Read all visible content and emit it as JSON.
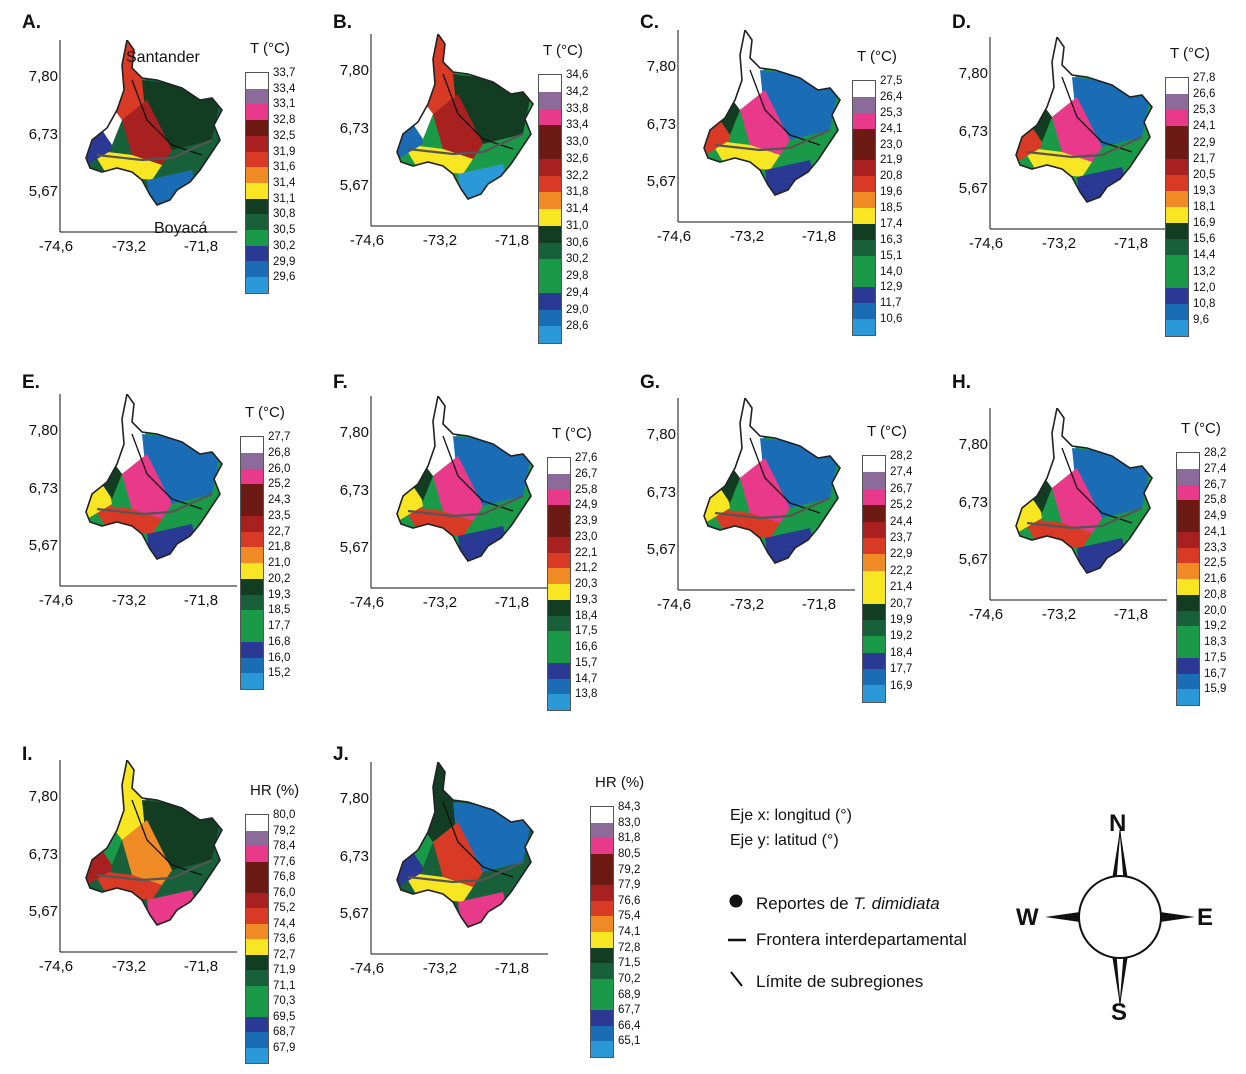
{
  "panels": [
    {
      "letter": "A.",
      "title": "T (°C)",
      "legend": [
        "33,7",
        "33,4",
        "33,1",
        "32,8",
        "32,5",
        "31,9",
        "31,6",
        "31,4",
        "31,1",
        "30,8",
        "30,5",
        "30,2",
        "29,9",
        "29,6"
      ],
      "scheme": "hot",
      "labels": {
        "north": "Santander",
        "south": "Boyacá"
      }
    },
    {
      "letter": "B.",
      "title": "T (°C)",
      "legend": [
        "34,6",
        "34,2",
        "33,8",
        "33,4",
        "33,0",
        "32,6",
        "32,2",
        "31,8",
        "31,4",
        "31,0",
        "30,6",
        "30,2",
        "29,8",
        "29,4",
        "29,0",
        "28,6"
      ],
      "scheme": "hot2"
    },
    {
      "letter": "C.",
      "title": "T (°C)",
      "legend": [
        "27,5",
        "26,4",
        "25,3",
        "24,1",
        "23,0",
        "21,9",
        "20,8",
        "19,6",
        "18,5",
        "17,4",
        "16,3",
        "15,1",
        "14,0",
        "12,9",
        "11,7",
        "10,6"
      ],
      "scheme": "cool"
    },
    {
      "letter": "D.",
      "title": "T (°C)",
      "legend": [
        "27,8",
        "26,6",
        "25,3",
        "24,1",
        "22,9",
        "21,7",
        "20,5",
        "19,3",
        "18,1",
        "16,9",
        "15,6",
        "14,4",
        "13,2",
        "12,0",
        "10,8",
        "9,6"
      ],
      "scheme": "cool"
    },
    {
      "letter": "E.",
      "title": "T (°C)",
      "legend": [
        "27,7",
        "26,8",
        "26,0",
        "25,2",
        "24,3",
        "23,5",
        "22,7",
        "21,8",
        "21,0",
        "20,2",
        "19,3",
        "18,5",
        "17,7",
        "16,8",
        "16,0",
        "15,2"
      ],
      "scheme": "mid"
    },
    {
      "letter": "F.",
      "title": "T (°C)",
      "legend": [
        "27,6",
        "26,7",
        "25,8",
        "24,9",
        "23,9",
        "23,0",
        "22,1",
        "21,2",
        "20,3",
        "19,3",
        "18,4",
        "17,5",
        "16,6",
        "15,7",
        "14,7",
        "13,8"
      ],
      "scheme": "mid"
    },
    {
      "letter": "G.",
      "title": "T (°C)",
      "legend": [
        "28,2",
        "27,4",
        "26,7",
        "25,2",
        "24,4",
        "23,7",
        "22,9",
        "22,2",
        "21,4",
        "20,7",
        "19,9",
        "19,2",
        "18,4",
        "17,7",
        "16,9"
      ],
      "scheme": "mid"
    },
    {
      "letter": "H.",
      "title": "T (°C)",
      "legend": [
        "28,2",
        "27,4",
        "26,7",
        "25,8",
        "24,9",
        "24,1",
        "23,3",
        "22,5",
        "21,6",
        "20,8",
        "20,0",
        "19,2",
        "18,3",
        "17,5",
        "16,7",
        "15,9"
      ],
      "scheme": "mid"
    },
    {
      "letter": "I.",
      "title": "HR (%)",
      "legend": [
        "80,0",
        "79,2",
        "78,4",
        "77,6",
        "76,8",
        "76,0",
        "75,2",
        "74,4",
        "73,6",
        "72,7",
        "71,9",
        "71,1",
        "70,3",
        "69,5",
        "68,7",
        "67,9"
      ],
      "scheme": "hr1"
    },
    {
      "letter": "J.",
      "title": "HR (%)",
      "legend": [
        "84,3",
        "83,0",
        "81,8",
        "80,5",
        "79,2",
        "77,9",
        "76,6",
        "75,4",
        "74,1",
        "72,8",
        "71,5",
        "70,2",
        "68,9",
        "67,7",
        "66,4",
        "65,1"
      ],
      "scheme": "hr2"
    }
  ],
  "axes": {
    "y": [
      "7,80",
      "6,73",
      "5,67"
    ],
    "x": [
      "-74,6",
      "-73,2",
      "-71,8"
    ]
  },
  "notes": {
    "x": "Eje x: longitud (°)",
    "y": "Eje y: latitud (°)"
  },
  "key": {
    "reports_prefix": "Reportes de ",
    "reports_species": "T. dimidiata",
    "border": "Frontera interdepartamental",
    "subregion": "Límite de subregiones"
  },
  "compass": {
    "n": "N",
    "s": "S",
    "e": "E",
    "w": "W"
  },
  "colors": [
    "#ffffff",
    "#8c6a9a",
    "#e8398b",
    "#6e1a14",
    "#a82020",
    "#d93a26",
    "#f08a24",
    "#f7e621",
    "#133d22",
    "#17603a",
    "#1a9a48",
    "#2a3a94",
    "#1a6cb5",
    "#2b98d8"
  ]
}
